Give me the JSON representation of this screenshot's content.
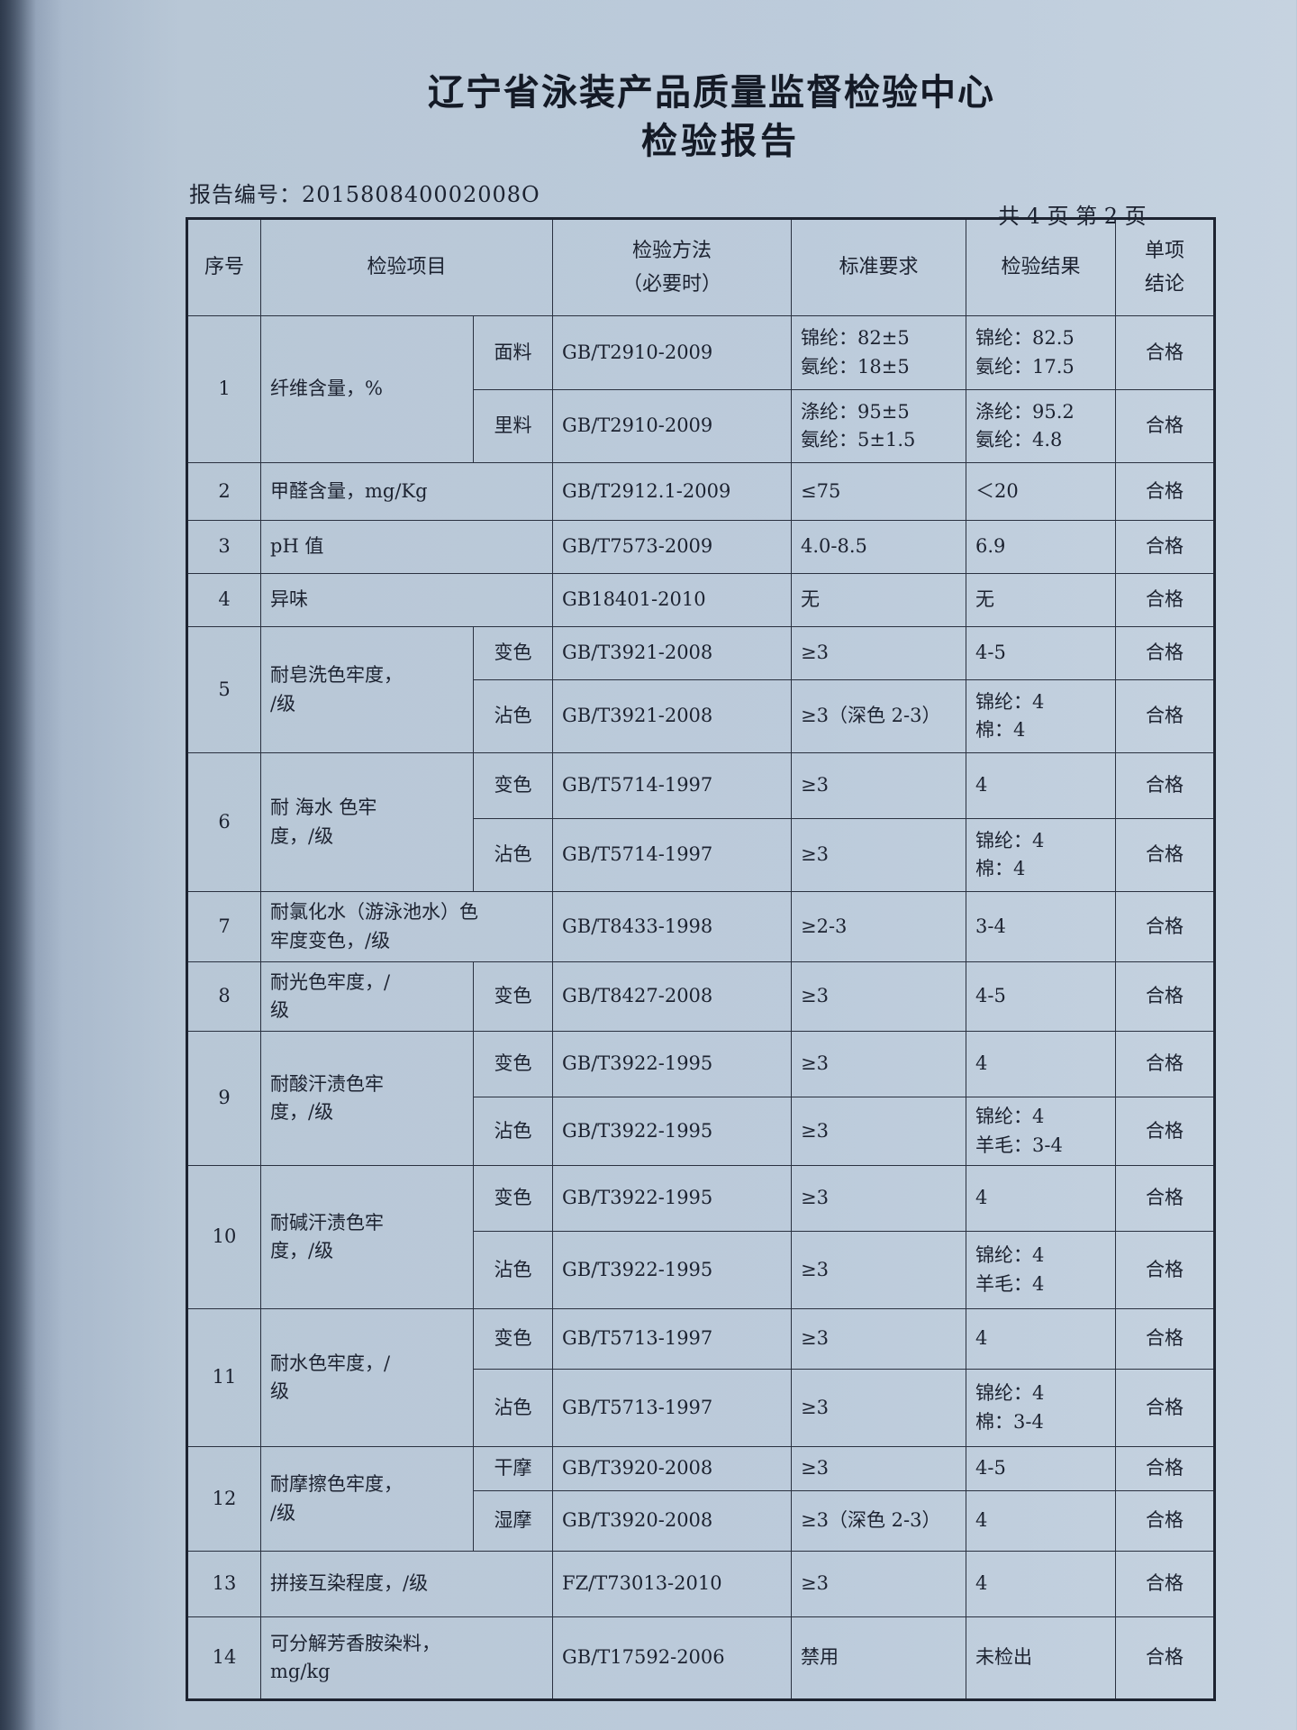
{
  "header": {
    "title": "辽宁省泳装产品质量监督检验中心",
    "subtitle": "检验报告",
    "report_no": "报告编号：201580840002008O",
    "page_info": "共 4 页  第 2 页"
  },
  "columns": [
    "序号",
    "检验项目",
    "检验方法\n（必要时）",
    "标准要求",
    "检验结果",
    "单项\n结论"
  ],
  "rows": [
    {
      "no": "1",
      "item": "纤维含量，%",
      "subs": [
        {
          "sub": "面料",
          "method": "GB/T2910-2009",
          "std": "锦纶：82±5\n氨纶：18±5",
          "result": "锦纶：82.5\n氨纶：17.5",
          "concl": "合格"
        },
        {
          "sub": "里料",
          "method": "GB/T2910-2009",
          "std": "涤纶：95±5\n氨纶：5±1.5",
          "result": "涤纶：95.2\n氨纶：4.8",
          "concl": "合格"
        }
      ]
    },
    {
      "no": "2",
      "item": "甲醛含量，mg/Kg",
      "subs": [
        {
          "method": "GB/T2912.1-2009",
          "std": "≤75",
          "result": "＜20",
          "concl": "合格"
        }
      ]
    },
    {
      "no": "3",
      "item": "pH 值",
      "subs": [
        {
          "method": "GB/T7573-2009",
          "std": "4.0-8.5",
          "result": "6.9",
          "concl": "合格"
        }
      ]
    },
    {
      "no": "4",
      "item": "异味",
      "subs": [
        {
          "method": "GB18401-2010",
          "std": "无",
          "result": "无",
          "concl": "合格"
        }
      ]
    },
    {
      "no": "5",
      "item": "耐皂洗色牢度，\n/级",
      "subs": [
        {
          "sub": "变色",
          "method": "GB/T3921-2008",
          "std": "≥3",
          "result": "4-5",
          "concl": "合格"
        },
        {
          "sub": "沾色",
          "method": "GB/T3921-2008",
          "std": "≥3（深色 2-3）",
          "result": "锦纶：4\n棉：4",
          "concl": "合格"
        }
      ]
    },
    {
      "no": "6",
      "item": "耐 海水 色牢\n度，/级",
      "subs": [
        {
          "sub": "变色",
          "method": "GB/T5714-1997",
          "std": "≥3",
          "result": "4",
          "concl": "合格"
        },
        {
          "sub": "沾色",
          "method": "GB/T5714-1997",
          "std": "≥3",
          "result": "锦纶：4\n棉：4",
          "concl": "合格"
        }
      ]
    },
    {
      "no": "7",
      "item": "耐氯化水（游泳池水）色\n牢度变色，/级",
      "subs": [
        {
          "method": "GB/T8433-1998",
          "std": "≥2-3",
          "result": "3-4",
          "concl": "合格"
        }
      ]
    },
    {
      "no": "8",
      "item": "耐光色牢度，/\n级",
      "subs": [
        {
          "sub": "变色",
          "method": "GB/T8427-2008",
          "std": "≥3",
          "result": "4-5",
          "concl": "合格"
        }
      ]
    },
    {
      "no": "9",
      "item": "耐酸汗渍色牢\n度，/级",
      "subs": [
        {
          "sub": "变色",
          "method": "GB/T3922-1995",
          "std": "≥3",
          "result": "4",
          "concl": "合格"
        },
        {
          "sub": "沾色",
          "method": "GB/T3922-1995",
          "std": "≥3",
          "result": "锦纶：4\n羊毛：3-4",
          "concl": "合格"
        }
      ]
    },
    {
      "no": "10",
      "item": "耐碱汗渍色牢\n度，/级",
      "subs": [
        {
          "sub": "变色",
          "method": "GB/T3922-1995",
          "std": "≥3",
          "result": "4",
          "concl": "合格"
        },
        {
          "sub": "沾色",
          "method": "GB/T3922-1995",
          "std": "≥3",
          "result": "锦纶：4\n羊毛：4",
          "concl": "合格"
        }
      ]
    },
    {
      "no": "11",
      "item": "耐水色牢度，/\n级",
      "subs": [
        {
          "sub": "变色",
          "method": "GB/T5713-1997",
          "std": "≥3",
          "result": "4",
          "concl": "合格"
        },
        {
          "sub": "沾色",
          "method": "GB/T5713-1997",
          "std": "≥3",
          "result": "锦纶：4\n棉：3-4",
          "concl": "合格"
        }
      ]
    },
    {
      "no": "12",
      "item": "耐摩擦色牢度，\n/级",
      "subs": [
        {
          "sub": "干摩",
          "method": "GB/T3920-2008",
          "std": "≥3",
          "result": "4-5",
          "concl": "合格"
        },
        {
          "sub": "湿摩",
          "method": "GB/T3920-2008",
          "std": "≥3（深色 2-3）",
          "result": "4",
          "concl": "合格"
        }
      ]
    },
    {
      "no": "13",
      "item": "拼接互染程度，/级",
      "subs": [
        {
          "method": "FZ/T73013-2010",
          "std": "≥3",
          "result": "4",
          "concl": "合格"
        }
      ]
    },
    {
      "no": "14",
      "item": "可分解芳香胺染料，\nmg/kg",
      "subs": [
        {
          "method": "GB/T17592-2006",
          "std": "禁用",
          "result": "未检出",
          "concl": "合格"
        }
      ]
    }
  ]
}
